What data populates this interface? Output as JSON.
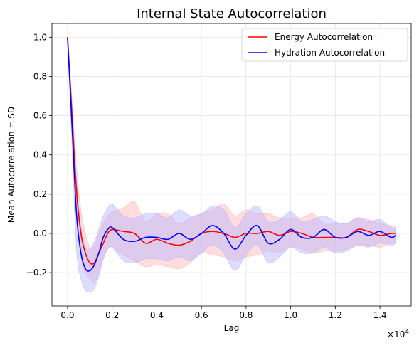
{
  "chart_data": {
    "type": "line",
    "title": "Internal State Autocorrelation",
    "xlabel": "Lag",
    "ylabel": "Mean Autocorrelation ± SD",
    "x_scale_label": "×10",
    "x_scale_exponent": "4",
    "xlim": [
      -0.07,
      1.54
    ],
    "ylim": [
      -0.37,
      1.07
    ],
    "xticks": [
      0.0,
      0.2,
      0.4,
      0.6,
      0.8,
      1.0,
      1.2,
      1.4
    ],
    "xtick_labels": [
      "0.0",
      "0.2",
      "0.4",
      "0.6",
      "0.8",
      "1.0",
      "1.2",
      "1.4"
    ],
    "yticks": [
      -0.2,
      0.0,
      0.2,
      0.4,
      0.6,
      0.8,
      1.0
    ],
    "ytick_labels": [
      "−0.2",
      "0.0",
      "0.2",
      "0.4",
      "0.6",
      "0.8",
      "1.0"
    ],
    "grid": true,
    "legend_position": "top-right",
    "series": [
      {
        "name": "Energy Autocorrelation",
        "color": "#ff0000",
        "fill_color": "#ffb3b3",
        "x": [
          0.0,
          0.02,
          0.04,
          0.06,
          0.08,
          0.1,
          0.12,
          0.14,
          0.16,
          0.18,
          0.2,
          0.25,
          0.3,
          0.35,
          0.4,
          0.45,
          0.5,
          0.55,
          0.6,
          0.65,
          0.7,
          0.75,
          0.8,
          0.85,
          0.9,
          0.95,
          1.0,
          1.05,
          1.1,
          1.15,
          1.2,
          1.25,
          1.3,
          1.35,
          1.4,
          1.45,
          1.47
        ],
        "y": [
          1.0,
          0.6,
          0.22,
          0.0,
          -0.1,
          -0.15,
          -0.15,
          -0.1,
          -0.05,
          0.0,
          0.02,
          0.01,
          0.0,
          -0.05,
          -0.03,
          -0.05,
          -0.06,
          -0.04,
          0.0,
          0.01,
          0.0,
          -0.02,
          0.0,
          0.0,
          0.01,
          -0.01,
          0.01,
          0.0,
          -0.02,
          -0.02,
          -0.02,
          -0.02,
          0.02,
          0.01,
          -0.01,
          0.0,
          0.0
        ],
        "lower": [
          1.0,
          0.55,
          0.1,
          -0.12,
          -0.2,
          -0.23,
          -0.25,
          -0.2,
          -0.13,
          -0.08,
          -0.07,
          -0.11,
          -0.14,
          -0.17,
          -0.16,
          -0.17,
          -0.18,
          -0.15,
          -0.1,
          -0.11,
          -0.12,
          -0.14,
          -0.12,
          -0.11,
          -0.09,
          -0.1,
          -0.07,
          -0.08,
          -0.1,
          -0.09,
          -0.09,
          -0.08,
          -0.06,
          -0.06,
          -0.07,
          -0.05,
          -0.05
        ],
        "upper": [
          1.0,
          0.68,
          0.34,
          0.12,
          0.0,
          -0.07,
          -0.06,
          0.0,
          0.05,
          0.09,
          0.11,
          0.13,
          0.16,
          0.06,
          0.1,
          0.1,
          0.05,
          0.08,
          0.1,
          0.12,
          0.15,
          0.09,
          0.12,
          0.1,
          0.1,
          0.08,
          0.08,
          0.08,
          0.1,
          0.05,
          0.05,
          0.05,
          0.08,
          0.07,
          0.05,
          0.04,
          0.04
        ]
      },
      {
        "name": "Hydration Autocorrelation",
        "color": "#0000ff",
        "fill_color": "#b3b3ff",
        "x": [
          0.0,
          0.02,
          0.04,
          0.06,
          0.08,
          0.1,
          0.12,
          0.14,
          0.16,
          0.18,
          0.2,
          0.25,
          0.3,
          0.35,
          0.4,
          0.45,
          0.5,
          0.55,
          0.6,
          0.65,
          0.7,
          0.75,
          0.8,
          0.85,
          0.9,
          0.95,
          1.0,
          1.05,
          1.1,
          1.15,
          1.2,
          1.25,
          1.3,
          1.35,
          1.4,
          1.45,
          1.47
        ],
        "y": [
          1.0,
          0.55,
          0.1,
          -0.1,
          -0.18,
          -0.19,
          -0.16,
          -0.1,
          -0.02,
          0.02,
          0.03,
          -0.03,
          -0.04,
          -0.02,
          -0.02,
          -0.03,
          0.0,
          -0.03,
          0.0,
          0.04,
          0.0,
          -0.08,
          -0.01,
          0.04,
          -0.05,
          -0.03,
          0.02,
          -0.02,
          -0.02,
          0.02,
          -0.02,
          -0.02,
          0.01,
          -0.01,
          0.01,
          -0.02,
          -0.01
        ],
        "lower": [
          1.0,
          0.45,
          -0.08,
          -0.23,
          -0.29,
          -0.3,
          -0.28,
          -0.22,
          -0.13,
          -0.08,
          -0.07,
          -0.14,
          -0.15,
          -0.13,
          -0.13,
          -0.14,
          -0.12,
          -0.14,
          -0.1,
          -0.06,
          -0.1,
          -0.19,
          -0.11,
          -0.06,
          -0.15,
          -0.12,
          -0.07,
          -0.1,
          -0.1,
          -0.07,
          -0.1,
          -0.09,
          -0.06,
          -0.07,
          -0.05,
          -0.06,
          -0.05
        ],
        "upper": [
          1.0,
          0.65,
          0.28,
          0.03,
          -0.07,
          -0.08,
          -0.04,
          0.02,
          0.09,
          0.13,
          0.15,
          0.09,
          0.08,
          0.1,
          0.1,
          0.08,
          0.12,
          0.09,
          0.1,
          0.14,
          0.12,
          0.03,
          0.1,
          0.14,
          0.06,
          0.07,
          0.11,
          0.06,
          0.07,
          0.09,
          0.06,
          0.05,
          0.08,
          0.06,
          0.07,
          0.03,
          0.03
        ]
      }
    ]
  }
}
